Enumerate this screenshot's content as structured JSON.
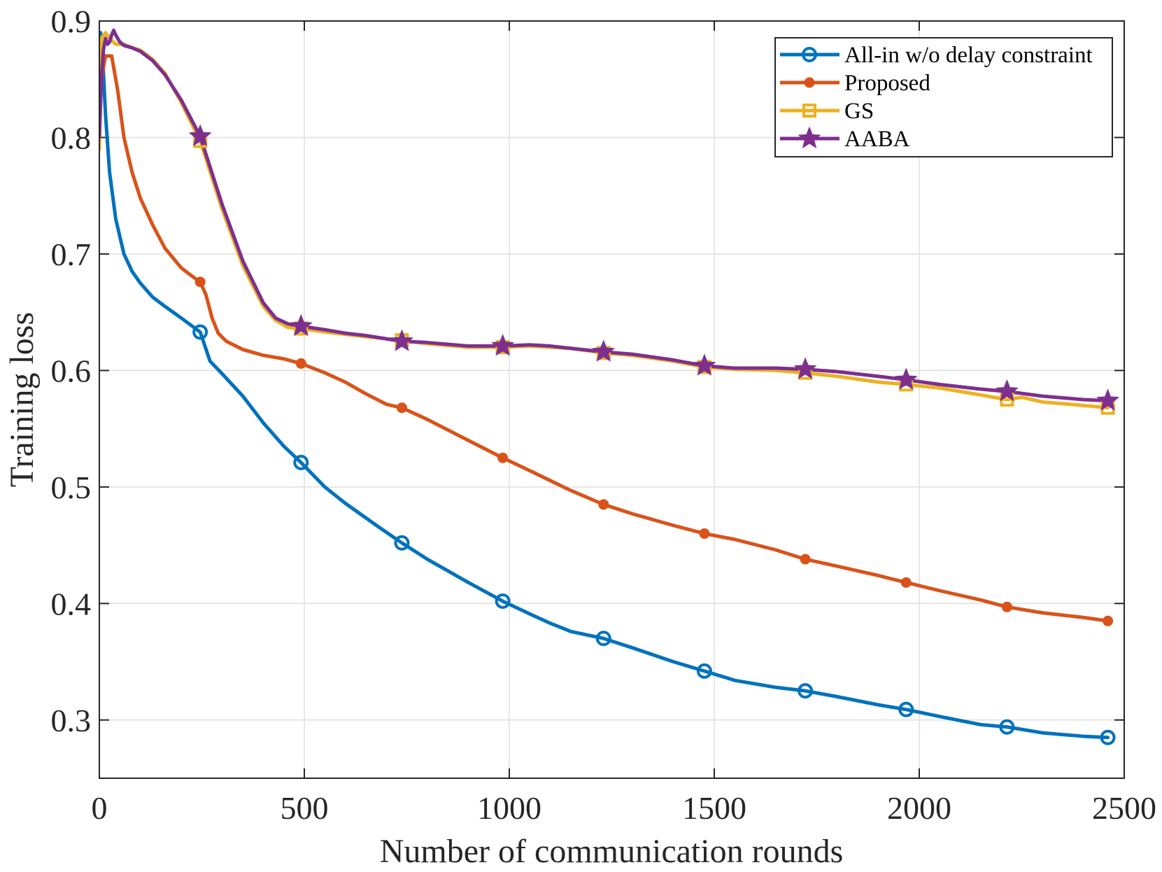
{
  "chart_data": {
    "type": "line",
    "title": "",
    "xlabel": "Number of communication rounds",
    "ylabel": "Training loss",
    "xlim": [
      0,
      2500
    ],
    "ylim": [
      0.25,
      0.9
    ],
    "xticks": [
      0,
      500,
      1000,
      1500,
      2000,
      2500
    ],
    "yticks": [
      0.3,
      0.4,
      0.5,
      0.6,
      0.7,
      0.8,
      0.9
    ],
    "xtick_labels": [
      "0",
      "500",
      "1000",
      "1500",
      "2000",
      "2500"
    ],
    "ytick_labels": [
      "0.3",
      "0.4",
      "0.5",
      "0.6",
      "0.7",
      "0.8",
      "0.9"
    ],
    "grid": true,
    "legend_position": "top-right",
    "series": [
      {
        "name": "All-in w/o delay constraint",
        "color": "#0072BD",
        "marker": "circle",
        "x": [
          0,
          3,
          8,
          15,
          25,
          40,
          60,
          80,
          100,
          130,
          160,
          200,
          246,
          270,
          300,
          350,
          400,
          450,
          492,
          550,
          600,
          680,
          738,
          800,
          900,
          984,
          1050,
          1100,
          1150,
          1230,
          1300,
          1400,
          1476,
          1550,
          1650,
          1722,
          1800,
          1900,
          1968,
          2050,
          2150,
          2214,
          2300,
          2400,
          2460
        ],
        "y": [
          0.88,
          0.89,
          0.87,
          0.82,
          0.77,
          0.73,
          0.7,
          0.685,
          0.675,
          0.663,
          0.655,
          0.645,
          0.633,
          0.608,
          0.597,
          0.578,
          0.555,
          0.535,
          0.521,
          0.5,
          0.486,
          0.466,
          0.452,
          0.438,
          0.418,
          0.402,
          0.391,
          0.383,
          0.376,
          0.37,
          0.362,
          0.35,
          0.342,
          0.334,
          0.328,
          0.325,
          0.32,
          0.313,
          0.309,
          0.303,
          0.296,
          0.294,
          0.289,
          0.286,
          0.285
        ]
      },
      {
        "name": "Proposed",
        "color": "#D95319",
        "marker": "filled-circle",
        "x": [
          0,
          5,
          15,
          30,
          45,
          60,
          80,
          100,
          130,
          160,
          200,
          230,
          246,
          260,
          275,
          290,
          310,
          350,
          400,
          450,
          492,
          550,
          600,
          650,
          700,
          738,
          800,
          900,
          984,
          1050,
          1150,
          1230,
          1300,
          1400,
          1476,
          1550,
          1650,
          1722,
          1800,
          1900,
          1968,
          2050,
          2150,
          2214,
          2300,
          2400,
          2460
        ],
        "y": [
          0.8,
          0.85,
          0.87,
          0.87,
          0.84,
          0.8,
          0.77,
          0.748,
          0.725,
          0.705,
          0.688,
          0.68,
          0.676,
          0.665,
          0.645,
          0.632,
          0.625,
          0.618,
          0.613,
          0.61,
          0.606,
          0.598,
          0.59,
          0.58,
          0.571,
          0.568,
          0.558,
          0.54,
          0.525,
          0.514,
          0.497,
          0.485,
          0.477,
          0.467,
          0.46,
          0.455,
          0.446,
          0.438,
          0.432,
          0.424,
          0.418,
          0.411,
          0.403,
          0.397,
          0.392,
          0.388,
          0.385
        ]
      },
      {
        "name": "GS",
        "color": "#EDB120",
        "marker": "square",
        "x": [
          0,
          5,
          15,
          25,
          40,
          60,
          80,
          100,
          130,
          160,
          200,
          246,
          300,
          350,
          400,
          430,
          460,
          492,
          550,
          600,
          650,
          738,
          800,
          900,
          984,
          1050,
          1100,
          1150,
          1230,
          1300,
          1400,
          1476,
          1550,
          1650,
          1722,
          1800,
          1900,
          1968,
          2050,
          2150,
          2214,
          2250,
          2300,
          2400,
          2460
        ],
        "y": [
          0.79,
          0.885,
          0.89,
          0.885,
          0.88,
          0.88,
          0.877,
          0.875,
          0.867,
          0.855,
          0.83,
          0.797,
          0.738,
          0.69,
          0.655,
          0.643,
          0.637,
          0.636,
          0.633,
          0.631,
          0.629,
          0.626,
          0.623,
          0.62,
          0.62,
          0.621,
          0.62,
          0.619,
          0.615,
          0.613,
          0.608,
          0.603,
          0.601,
          0.6,
          0.598,
          0.595,
          0.59,
          0.588,
          0.585,
          0.579,
          0.575,
          0.577,
          0.573,
          0.57,
          0.568
        ]
      },
      {
        "name": "AABA",
        "color": "#7E2F8E",
        "marker": "star",
        "x": [
          0,
          5,
          10,
          15,
          20,
          25,
          30,
          35,
          40,
          50,
          60,
          80,
          100,
          130,
          160,
          200,
          246,
          300,
          350,
          400,
          430,
          460,
          492,
          550,
          600,
          650,
          738,
          800,
          900,
          984,
          1050,
          1100,
          1150,
          1230,
          1300,
          1400,
          1476,
          1550,
          1650,
          1722,
          1800,
          1900,
          1968,
          2050,
          2150,
          2214,
          2300,
          2400,
          2460
        ],
        "y": [
          0.8,
          0.85,
          0.875,
          0.885,
          0.88,
          0.882,
          0.888,
          0.892,
          0.888,
          0.882,
          0.879,
          0.877,
          0.874,
          0.866,
          0.854,
          0.832,
          0.801,
          0.742,
          0.694,
          0.658,
          0.645,
          0.64,
          0.638,
          0.635,
          0.632,
          0.63,
          0.625,
          0.624,
          0.621,
          0.621,
          0.622,
          0.621,
          0.619,
          0.616,
          0.614,
          0.609,
          0.604,
          0.602,
          0.602,
          0.601,
          0.599,
          0.595,
          0.592,
          0.588,
          0.584,
          0.582,
          0.578,
          0.575,
          0.574
        ]
      }
    ]
  }
}
